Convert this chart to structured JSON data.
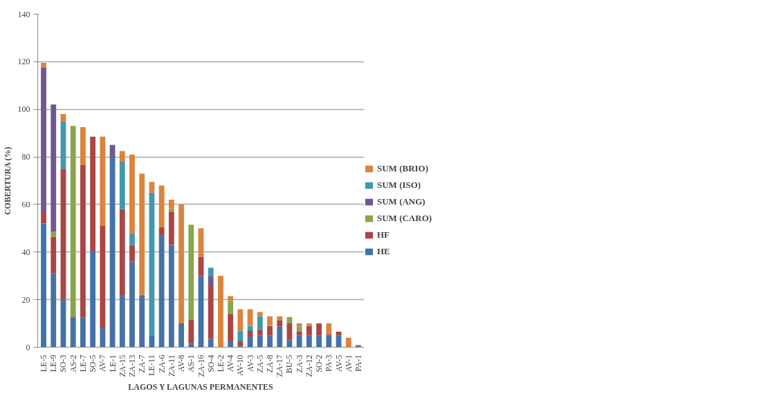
{
  "chart_data": {
    "type": "bar",
    "stacked": true,
    "xlabel": "LAGOS Y LAGUNAS PERMANENTES",
    "ylabel": "COBERTURA (%)",
    "categories": [
      "LE-5",
      "LE-9",
      "SO-3",
      "AS-2",
      "LE-7",
      "SO-5",
      "AV-7",
      "LE-1",
      "ZA-15",
      "ZA-13",
      "ZA-7",
      "LE-11",
      "ZA-6",
      "ZA-11",
      "AV-8",
      "AS-1",
      "ZA-16",
      "SO-4",
      "LE-2",
      "AV-4",
      "AV-10",
      "AV-3",
      "ZA-5",
      "ZA-8",
      "ZA-17",
      "BU-5",
      "ZA-3",
      "ZA-12",
      "SO-2",
      "PA-3",
      "AV-5",
      "AV-1",
      "PA-1"
    ],
    "series": [
      {
        "name": "HE",
        "color": "#4572a7",
        "values": [
          52,
          31,
          20,
          12.5,
          12.5,
          40.5,
          8,
          80,
          21.5,
          36,
          21.7,
          5,
          47,
          43,
          10,
          1.5,
          30,
          3.5,
          null,
          2.5,
          0.5,
          4.5,
          5,
          5,
          8.7,
          3,
          5,
          5,
          5,
          5,
          5,
          null,
          0.5
        ]
      },
      {
        "name": "HF",
        "color": "#aa4643",
        "values": [
          4.5,
          15.5,
          55,
          0.5,
          64,
          48,
          43,
          null,
          36.5,
          7,
          0.3,
          null,
          3.5,
          14,
          null,
          10,
          8,
          22.5,
          null,
          11.5,
          2,
          2.3,
          2.3,
          4,
          2.7,
          7,
          1.6,
          4,
          5,
          0.5,
          1.5,
          null,
          0.3
        ]
      },
      {
        "name": "SUM (CARO)",
        "color": "#89a54e",
        "values": [
          null,
          2,
          null,
          80,
          null,
          null,
          null,
          null,
          null,
          null,
          null,
          null,
          null,
          1.3,
          null,
          40,
          null,
          null,
          null,
          5.5,
          null,
          null,
          null,
          0.3,
          null,
          2.7,
          1.9,
          null,
          null,
          null,
          null,
          null,
          null
        ]
      },
      {
        "name": "SUM (ANG)",
        "color": "#71588f",
        "values": [
          61,
          53.5,
          null,
          null,
          null,
          null,
          null,
          5,
          null,
          null,
          null,
          null,
          null,
          null,
          null,
          null,
          null,
          3.8,
          null,
          null,
          null,
          null,
          0.3,
          null,
          null,
          null,
          null,
          null,
          null,
          null,
          null,
          null,
          null
        ]
      },
      {
        "name": "SUM (ISO)",
        "color": "#4198af",
        "values": [
          null,
          null,
          20,
          null,
          null,
          null,
          null,
          null,
          20,
          5,
          null,
          60,
          null,
          null,
          null,
          null,
          null,
          3.5,
          null,
          null,
          4.5,
          2.2,
          5.5,
          null,
          null,
          null,
          0.3,
          null,
          null,
          null,
          null,
          null,
          null
        ]
      },
      {
        "name": "SUM (BRIO)",
        "color": "#db843d",
        "values": [
          2,
          null,
          3,
          null,
          16,
          null,
          37.5,
          null,
          4.5,
          33,
          51,
          4.5,
          17.5,
          3.7,
          50,
          null,
          12,
          0.2,
          30,
          2,
          9,
          7,
          1.7,
          3.7,
          1.6,
          null,
          1.2,
          1,
          null,
          4.5,
          null,
          4,
          0.2
        ]
      }
    ],
    "ylim": [
      0,
      140
    ],
    "yticks": [
      0,
      20,
      40,
      60,
      80,
      100,
      120,
      140
    ],
    "grid": "y",
    "legend": "right"
  }
}
